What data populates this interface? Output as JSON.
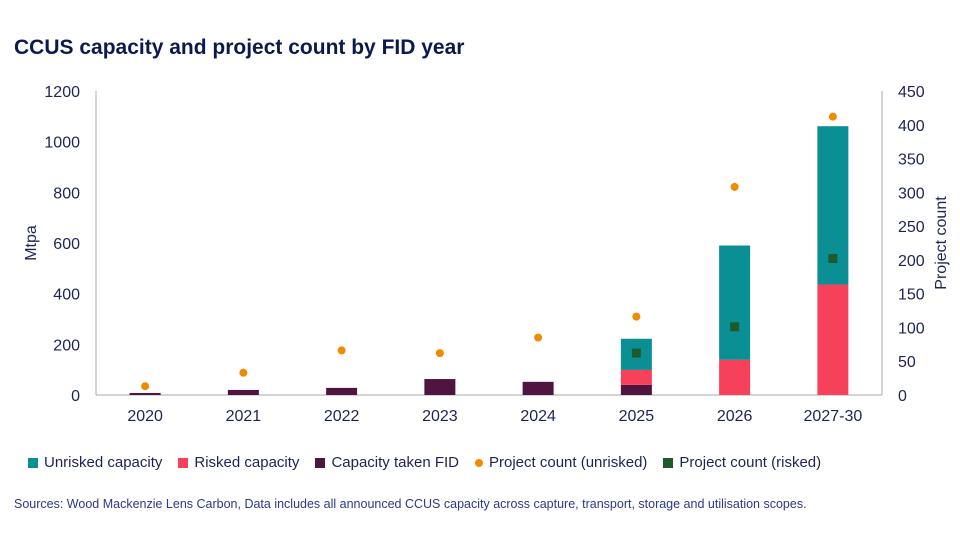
{
  "title": "CCUS capacity and project count by FID year",
  "source": "Sources: Wood Mackenzie Lens Carbon, Data includes all announced CCUS capacity across capture, transport, storage and utilisation scopes.",
  "colors": {
    "unrisked": "#0a8f94",
    "risked": "#f7405a",
    "taken": "#4f1440",
    "count_unrisked": "#f08a00",
    "count_risked": "#1e5a2e"
  },
  "chart_data": {
    "type": "bar",
    "stacked": true,
    "title": "CCUS capacity and project count by FID year",
    "categories": [
      "2020",
      "2021",
      "2022",
      "2023",
      "2024",
      "2025",
      "2026",
      "2027-30"
    ],
    "ylabel": "Mtpa",
    "y2label": "Project count",
    "ylim": [
      0,
      1200
    ],
    "y2lim": [
      0,
      450
    ],
    "yticks": [
      "0",
      "200",
      "400",
      "600",
      "800",
      "1000",
      "1200"
    ],
    "y2ticks": [
      "0",
      "50",
      "100",
      "150",
      "200",
      "250",
      "300",
      "350",
      "400",
      "450"
    ],
    "series": [
      {
        "name": "Capacity taken FID",
        "axis": "left",
        "kind": "bar",
        "values": [
          8,
          20,
          28,
          63,
          52,
          40,
          0,
          0
        ]
      },
      {
        "name": "Risked capacity",
        "axis": "left",
        "kind": "bar",
        "values": [
          0,
          0,
          0,
          0,
          0,
          59,
          139,
          436
        ]
      },
      {
        "name": "Unrisked capacity",
        "axis": "left",
        "kind": "bar",
        "values": [
          0,
          0,
          0,
          0,
          0,
          123,
          451,
          625
        ]
      },
      {
        "name": "Project count (unrisked)",
        "axis": "right",
        "kind": "dot",
        "values": [
          13,
          33,
          66,
          62,
          85,
          116,
          308,
          412
        ]
      },
      {
        "name": "Project count (risked)",
        "axis": "right",
        "kind": "square",
        "values": [
          null,
          null,
          null,
          null,
          null,
          62,
          101,
          202
        ]
      }
    ],
    "legend": [
      "Unrisked capacity",
      "Risked capacity",
      "Capacity taken FID",
      "Project count (unrisked)",
      "Project count (risked)"
    ],
    "legend_position": "bottom",
    "grid": false
  }
}
